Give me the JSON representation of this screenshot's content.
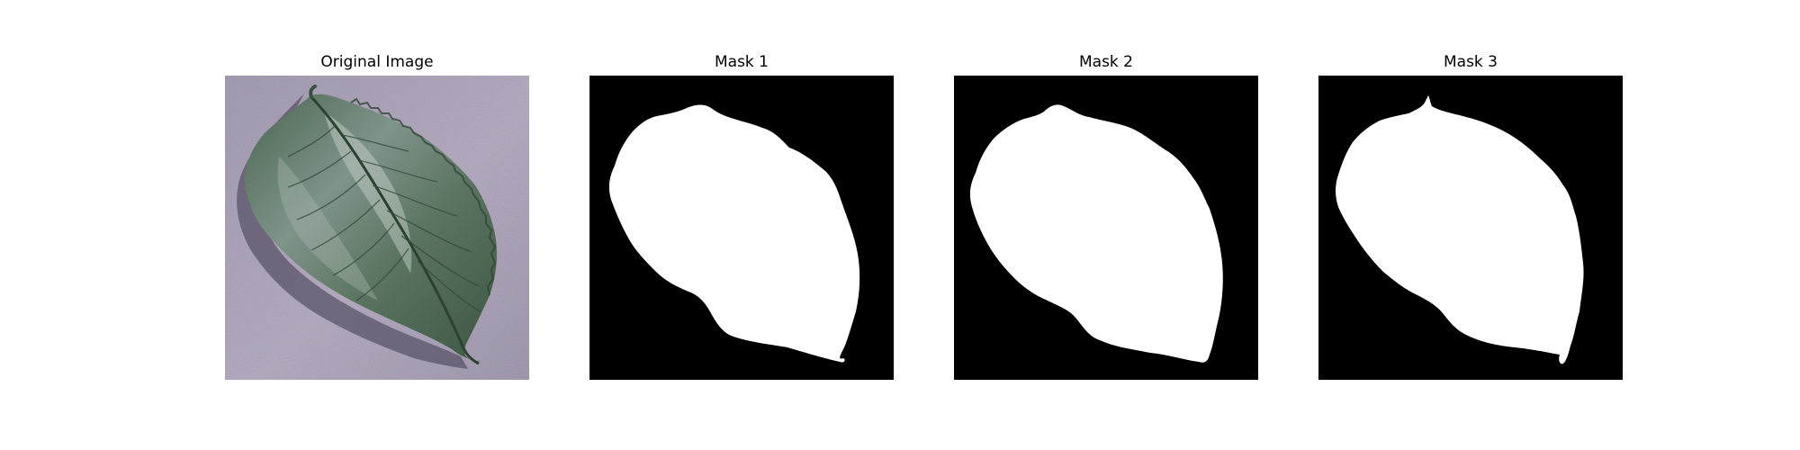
{
  "figure": {
    "panels": [
      {
        "title": "Original Image"
      },
      {
        "title": "Mask 1"
      },
      {
        "title": "Mask 2"
      },
      {
        "title": "Mask 3"
      }
    ]
  },
  "colors": {
    "background": "#ffffff",
    "mask_foreground": "#ffffff",
    "mask_background": "#000000",
    "leaf_dark": "#3f5a44",
    "leaf_light": "#8fa396",
    "surface": "#b1a7bd"
  }
}
